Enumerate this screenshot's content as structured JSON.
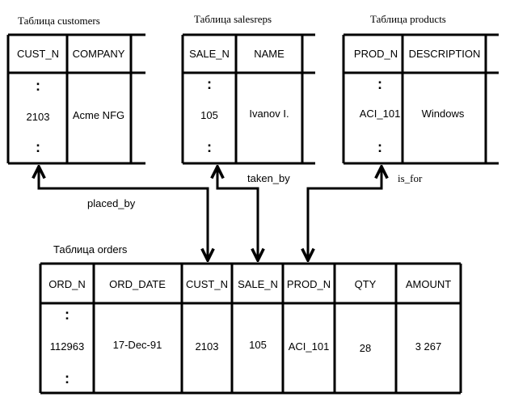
{
  "tables": {
    "customers": {
      "title": "Таблица customers",
      "columns": [
        "CUST_N",
        "COMPANY"
      ],
      "row": [
        "2103",
        "Acme NFG"
      ]
    },
    "salesreps": {
      "title": "Таблица salesreps",
      "columns": [
        "SALE_N",
        "NAME"
      ],
      "row": [
        "105",
        "Ivanov I."
      ]
    },
    "products": {
      "title": "Таблица products",
      "columns": [
        "PROD_N",
        "DESCRIPTION"
      ],
      "row": [
        "ACI_101",
        "Windows"
      ]
    },
    "orders": {
      "title": "Таблица orders",
      "columns": [
        "ORD_N",
        "ORD_DATE",
        "CUST_N",
        "SALE_N",
        "PROD_N",
        "QTY",
        "AMOUNT"
      ],
      "row": [
        "112963",
        "17-Dec-91",
        "2103",
        "105",
        "ACI_101",
        "28",
        "3 267"
      ]
    }
  },
  "ellipsis": ":",
  "relations": {
    "placed_by": "placed_by",
    "taken_by": "taken_by",
    "is_for": "is_for"
  }
}
